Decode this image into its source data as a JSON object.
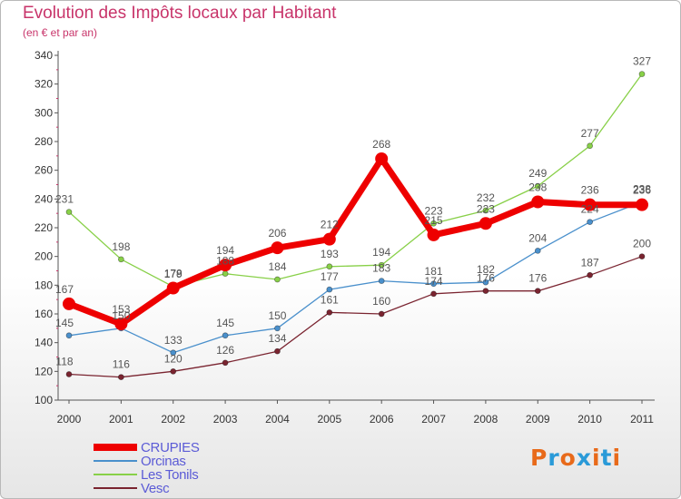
{
  "chart_data": {
    "type": "line",
    "title": "Evolution des Impôts locaux par Habitant",
    "subtitle": "(en € et par an)",
    "x": [
      "2000",
      "2001",
      "2002",
      "2003",
      "2004",
      "2005",
      "2006",
      "2007",
      "2008",
      "2009",
      "2010",
      "2011"
    ],
    "ylim": [
      100,
      340
    ],
    "yticks": [
      100,
      120,
      140,
      160,
      180,
      200,
      220,
      240,
      260,
      280,
      300,
      320,
      340
    ],
    "grid": false,
    "legend_position": "bottom-left",
    "series": [
      {
        "name": "Les Tonils",
        "color": "#88d048",
        "values": [
          231,
          198,
          179,
          188,
          184,
          193,
          194,
          223,
          232,
          249,
          277,
          327
        ]
      },
      {
        "name": "Vesc",
        "color": "#7a2430",
        "values": [
          118,
          116,
          120,
          126,
          134,
          161,
          160,
          174,
          176,
          176,
          187,
          200
        ]
      },
      {
        "name": "Orcinas",
        "color": "#4a90cc",
        "values": [
          145,
          150,
          133,
          145,
          150,
          177,
          183,
          181,
          182,
          204,
          224,
          238
        ]
      },
      {
        "name": "CRUPIES",
        "color": "#ee0000",
        "values": [
          167,
          153,
          178,
          194,
          206,
          212,
          268,
          215,
          223,
          238,
          236,
          236
        ]
      }
    ],
    "legend_order": [
      "CRUPIES",
      "Orcinas",
      "Les Tonils",
      "Vesc"
    ]
  },
  "logo": {
    "text": "Proxiti",
    "colors": [
      "#e86a1a",
      "#2a9ad8",
      "#e86a1a",
      "#2a9ad8",
      "#e86a1a",
      "#2a9ad8",
      "#e86a1a"
    ]
  }
}
